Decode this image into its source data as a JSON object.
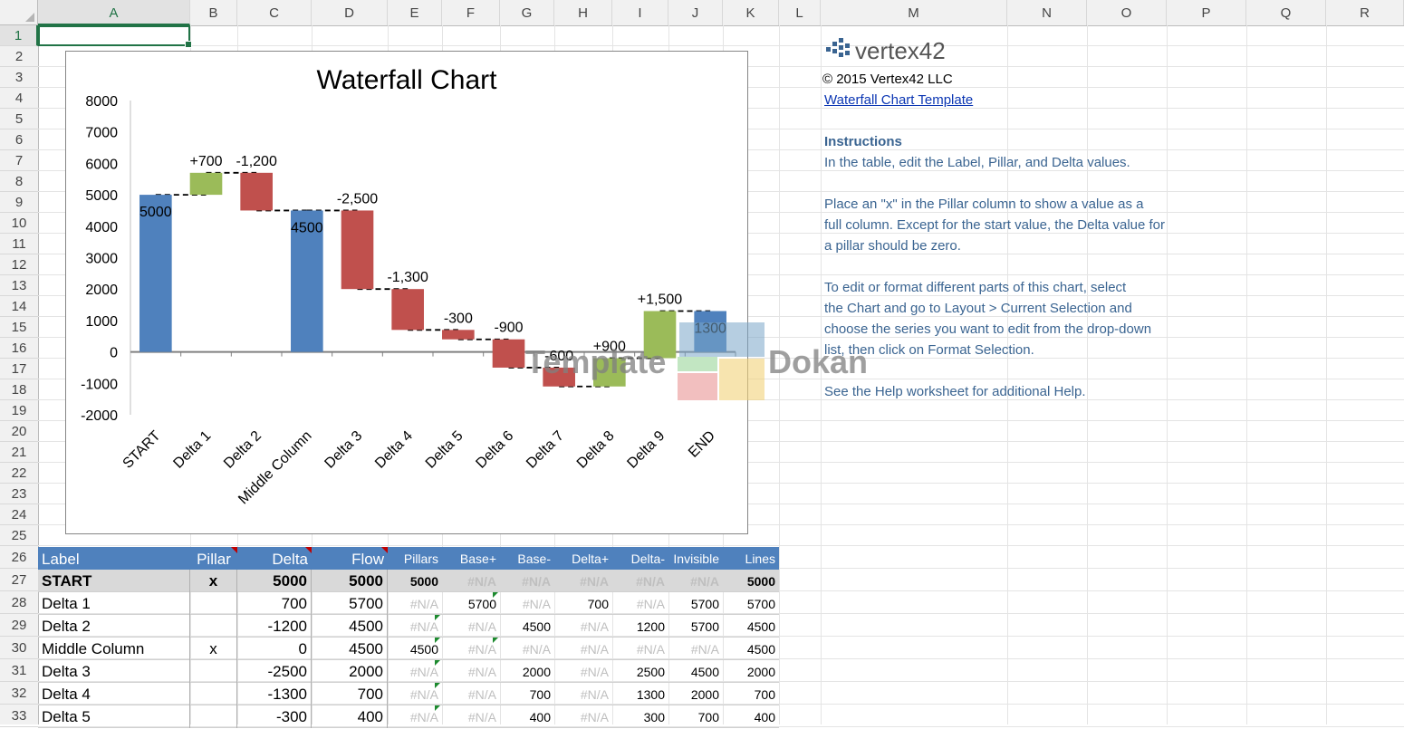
{
  "columns": [
    "A",
    "B",
    "C",
    "D",
    "E",
    "F",
    "G",
    "H",
    "I",
    "J",
    "K",
    "L",
    "M",
    "N",
    "O",
    "P",
    "Q",
    "R"
  ],
  "rows": [
    "1",
    "2",
    "3",
    "4",
    "5",
    "6",
    "7",
    "8",
    "9",
    "10",
    "11",
    "12",
    "13",
    "14",
    "15",
    "16",
    "17",
    "18",
    "19",
    "20",
    "21",
    "22",
    "23",
    "24",
    "25",
    "26",
    "27",
    "28",
    "29",
    "30",
    "31",
    "32",
    "33"
  ],
  "selected_cell": "A1",
  "chart_data": {
    "type": "bar",
    "title": "Waterfall Chart",
    "categories": [
      "START",
      "Delta 1",
      "Delta 2",
      "Middle Column",
      "Delta 3",
      "Delta 4",
      "Delta 5",
      "Delta 6",
      "Delta 7",
      "Delta 8",
      "Delta 9",
      "END"
    ],
    "y_ticks": [
      "8000",
      "7000",
      "6000",
      "5000",
      "4000",
      "3000",
      "2000",
      "1000",
      "0",
      "-1000",
      "-2000"
    ],
    "ylim": [
      -2000,
      8000
    ],
    "bars": [
      {
        "kind": "pillar",
        "from": 0,
        "to": 5000,
        "label": "5000"
      },
      {
        "kind": "up",
        "from": 5000,
        "to": 5700,
        "label": "+700"
      },
      {
        "kind": "down",
        "from": 5700,
        "to": 4500,
        "label": "-1,200"
      },
      {
        "kind": "pillar",
        "from": 0,
        "to": 4500,
        "label": "4500"
      },
      {
        "kind": "down",
        "from": 4500,
        "to": 2000,
        "label": "-2,500"
      },
      {
        "kind": "down",
        "from": 2000,
        "to": 700,
        "label": "-1,300"
      },
      {
        "kind": "down",
        "from": 700,
        "to": 400,
        "label": "-300"
      },
      {
        "kind": "down",
        "from": 400,
        "to": -500,
        "label": "-900"
      },
      {
        "kind": "down",
        "from": -500,
        "to": -1100,
        "label": "-600"
      },
      {
        "kind": "up",
        "from": -1100,
        "to": -200,
        "label": "+900"
      },
      {
        "kind": "up",
        "from": -200,
        "to": 1300,
        "label": "+1,500"
      },
      {
        "kind": "pillar",
        "from": 0,
        "to": 1300,
        "label": "1300"
      }
    ],
    "colors": {
      "pillar": "#4f81bd",
      "up": "#9bbb59",
      "down": "#c0504d"
    }
  },
  "watermark": {
    "text_left": "Template",
    "text_right": "Dokan"
  },
  "side_panel": {
    "logo_text": "vertex42",
    "copyright": "© 2015 Vertex42 LLC",
    "template_link": "Waterfall Chart Template",
    "instructions_heading": "Instructions",
    "lines": [
      "In the table, edit the Label, Pillar, and Delta values.",
      "",
      "Place an \"x\" in the Pillar column to show a value as a",
      "full column. Except for the start value, the Delta value for",
      "a pillar should be zero.",
      "",
      "To edit or format different parts of this chart, select",
      "the Chart and go to Layout > Current Selection and",
      "choose the series you want to edit from the drop-down",
      "list, then click on Format Selection.",
      "",
      "See the Help worksheet for additional Help."
    ]
  },
  "table": {
    "headers": [
      "Label",
      "Pillar",
      "Delta",
      "Flow",
      "Pillars",
      "Base+",
      "Base-",
      "Delta+",
      "Delta-",
      "Invisible",
      "Lines"
    ],
    "rows": [
      [
        "START",
        "x",
        "5000",
        "5000",
        "5000",
        "#N/A",
        "#N/A",
        "#N/A",
        "#N/A",
        "#N/A",
        "5000"
      ],
      [
        "Delta 1",
        "",
        "700",
        "5700",
        "#N/A",
        "5700",
        "#N/A",
        "700",
        "#N/A",
        "5700",
        "5700"
      ],
      [
        "Delta 2",
        "",
        "-1200",
        "4500",
        "#N/A",
        "#N/A",
        "4500",
        "#N/A",
        "1200",
        "5700",
        "4500"
      ],
      [
        "Middle Column",
        "x",
        "0",
        "4500",
        "4500",
        "#N/A",
        "#N/A",
        "#N/A",
        "#N/A",
        "#N/A",
        "4500"
      ],
      [
        "Delta 3",
        "",
        "-2500",
        "2000",
        "#N/A",
        "#N/A",
        "2000",
        "#N/A",
        "2500",
        "4500",
        "2000"
      ],
      [
        "Delta 4",
        "",
        "-1300",
        "700",
        "#N/A",
        "#N/A",
        "700",
        "#N/A",
        "1300",
        "2000",
        "700"
      ],
      [
        "Delta 5",
        "",
        "-300",
        "400",
        "#N/A",
        "#N/A",
        "400",
        "#N/A",
        "300",
        "700",
        "400"
      ]
    ]
  }
}
